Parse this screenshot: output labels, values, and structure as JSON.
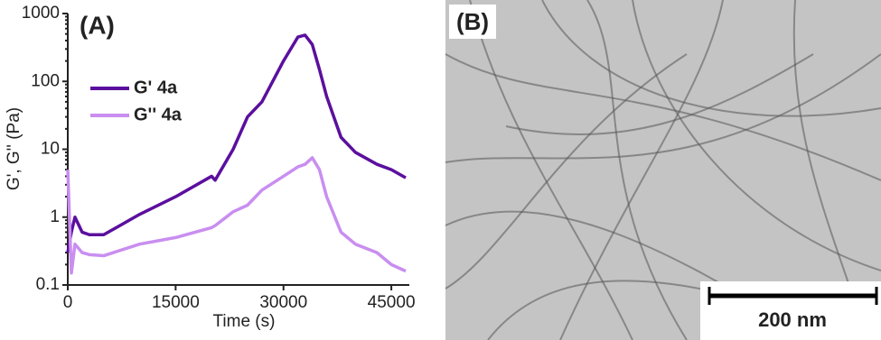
{
  "chart_data": {
    "type": "line",
    "label": "(A)",
    "x_label": "Time (s)",
    "y_label": "G', G'' (Pa)",
    "x": [
      0,
      500,
      1000,
      2000,
      3000,
      5000,
      10000,
      15000,
      20000,
      20500,
      23000,
      25000,
      27000,
      30000,
      32000,
      33000,
      34000,
      35000,
      36000,
      38000,
      40000,
      43000,
      45000,
      47000
    ],
    "series": [
      {
        "name": "G' 4a",
        "color": "#5b0f9e",
        "values": [
          0.3,
          0.6,
          1,
          0.6,
          0.55,
          0.55,
          1.1,
          2,
          4,
          3.5,
          10,
          30,
          50,
          200,
          450,
          480,
          350,
          150,
          60,
          15,
          9,
          6,
          5,
          3.8
        ]
      },
      {
        "name": "G'' 4a",
        "color": "#c98ef0",
        "values": [
          5,
          0.15,
          0.4,
          0.3,
          0.28,
          0.27,
          0.4,
          0.5,
          0.7,
          0.75,
          1.2,
          1.5,
          2.5,
          4,
          5.5,
          6,
          7.5,
          5,
          2,
          0.6,
          0.4,
          0.3,
          0.2,
          0.16
        ]
      }
    ],
    "xlim": [
      0,
      47500
    ],
    "xticks": [
      0,
      15000,
      30000,
      45000
    ],
    "ylim": [
      0.1,
      1000
    ],
    "yticks": [
      0.1,
      1,
      10,
      100,
      1000
    ],
    "log_y": true,
    "grid": false
  },
  "image_panel": {
    "label": "(B)",
    "scale_bar": "200 nm"
  }
}
